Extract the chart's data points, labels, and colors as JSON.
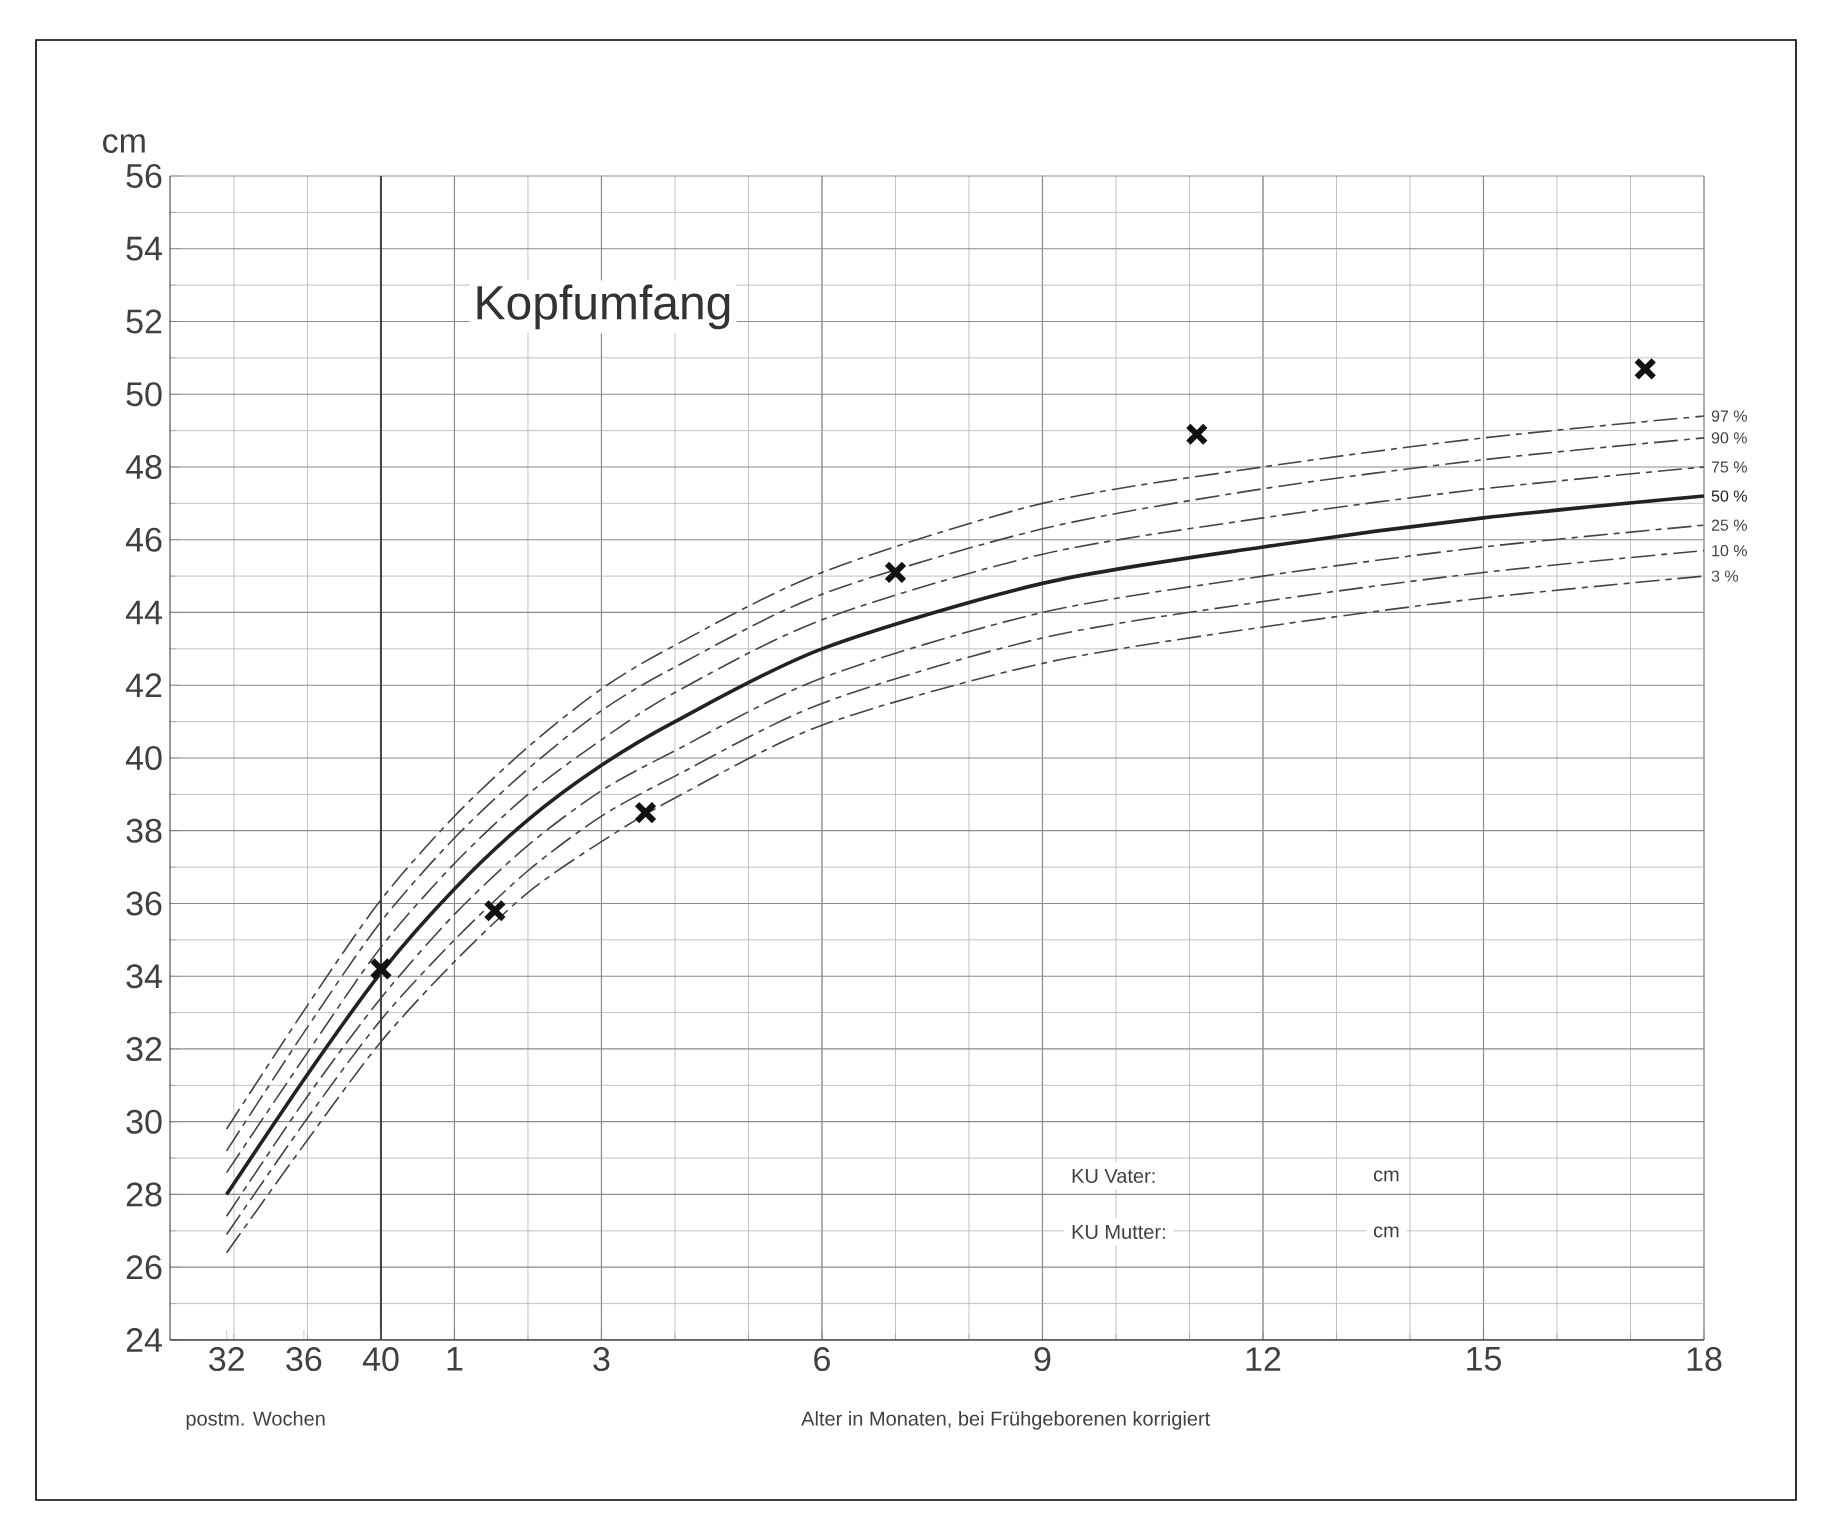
{
  "chart_data": {
    "type": "line",
    "title": "Kopfumfang",
    "ylabel": "cm",
    "xlabel": "Alter in Monaten, bei Frühgeborenen korrigiert",
    "xlim": [
      -2.87,
      18
    ],
    "ylim": [
      24,
      56
    ],
    "xticks": [
      1,
      3,
      6,
      9,
      12,
      15,
      18
    ],
    "x2lim": [
      29.06,
      108.6
    ],
    "x2ticks": [
      32,
      36,
      40
    ],
    "x2label": "postm. Wochen",
    "yticks": [
      24,
      26,
      28,
      30,
      32,
      34,
      36,
      38,
      40,
      42,
      44,
      46,
      48,
      50,
      52,
      54,
      56
    ],
    "grid": true,
    "annotations": [
      "KU Vater:",
      "cm",
      "KU Mutter:",
      "cm"
    ],
    "series": [
      {
        "name": "97 %",
        "color": "#444444",
        "line_style": "dashed",
        "x": [
          -2.1,
          -1,
          0,
          1,
          2,
          3,
          4,
          6,
          9,
          12,
          15,
          18
        ],
        "values": [
          29.8,
          33.2,
          36.1,
          38.4,
          40.3,
          41.9,
          43.1,
          45.1,
          47.0,
          48.0,
          48.8,
          49.4
        ]
      },
      {
        "name": "90 %",
        "color": "#444444",
        "line_style": "dashed",
        "x": [
          -2.1,
          -1,
          0,
          1,
          2,
          3,
          4,
          6,
          9,
          12,
          15,
          18
        ],
        "values": [
          29.2,
          32.6,
          35.5,
          37.8,
          39.7,
          41.3,
          42.5,
          44.5,
          46.3,
          47.4,
          48.2,
          48.8
        ]
      },
      {
        "name": "75 %",
        "color": "#444444",
        "line_style": "dashed",
        "x": [
          -2.1,
          -1,
          0,
          1,
          2,
          3,
          4,
          6,
          9,
          12,
          15,
          18
        ],
        "values": [
          28.6,
          31.9,
          34.8,
          37.1,
          39.0,
          40.5,
          41.8,
          43.8,
          45.6,
          46.6,
          47.4,
          48.0
        ]
      },
      {
        "name": "50 %",
        "color": "#222222",
        "line_style": "solid",
        "x": [
          -2.1,
          -1,
          0,
          1,
          2,
          3,
          4,
          6,
          9,
          12,
          15,
          18
        ],
        "values": [
          28.0,
          31.3,
          34.1,
          36.4,
          38.3,
          39.8,
          41.0,
          43.0,
          44.8,
          45.8,
          46.6,
          47.2
        ]
      },
      {
        "name": "25 %",
        "color": "#444444",
        "line_style": "dashed",
        "x": [
          -2.1,
          -1,
          0,
          1,
          2,
          3,
          4,
          6,
          9,
          12,
          15,
          18
        ],
        "values": [
          27.4,
          30.7,
          33.4,
          35.7,
          37.6,
          39.1,
          40.2,
          42.2,
          44.0,
          45.0,
          45.8,
          46.4
        ]
      },
      {
        "name": "10 %",
        "color": "#444444",
        "line_style": "dashed",
        "x": [
          -2.1,
          -1,
          0,
          1,
          2,
          3,
          4,
          6,
          9,
          12,
          15,
          18
        ],
        "values": [
          26.9,
          30.1,
          32.8,
          35.0,
          36.9,
          38.4,
          39.5,
          41.5,
          43.3,
          44.3,
          45.1,
          45.7
        ]
      },
      {
        "name": "3 %",
        "color": "#444444",
        "line_style": "dashed",
        "x": [
          -2.1,
          -1,
          0,
          1,
          2,
          3,
          4,
          6,
          9,
          12,
          15,
          18
        ],
        "values": [
          26.4,
          29.5,
          32.2,
          34.4,
          36.3,
          37.7,
          38.9,
          40.9,
          42.6,
          43.6,
          44.4,
          45.0
        ]
      },
      {
        "type": "scatter",
        "marker": "cross",
        "color": "#111111",
        "x": [
          0,
          1.55,
          3.6,
          7.0,
          11.1,
          17.2
        ],
        "values": [
          34.2,
          35.8,
          38.5,
          45.1,
          48.9,
          50.7
        ]
      }
    ]
  }
}
